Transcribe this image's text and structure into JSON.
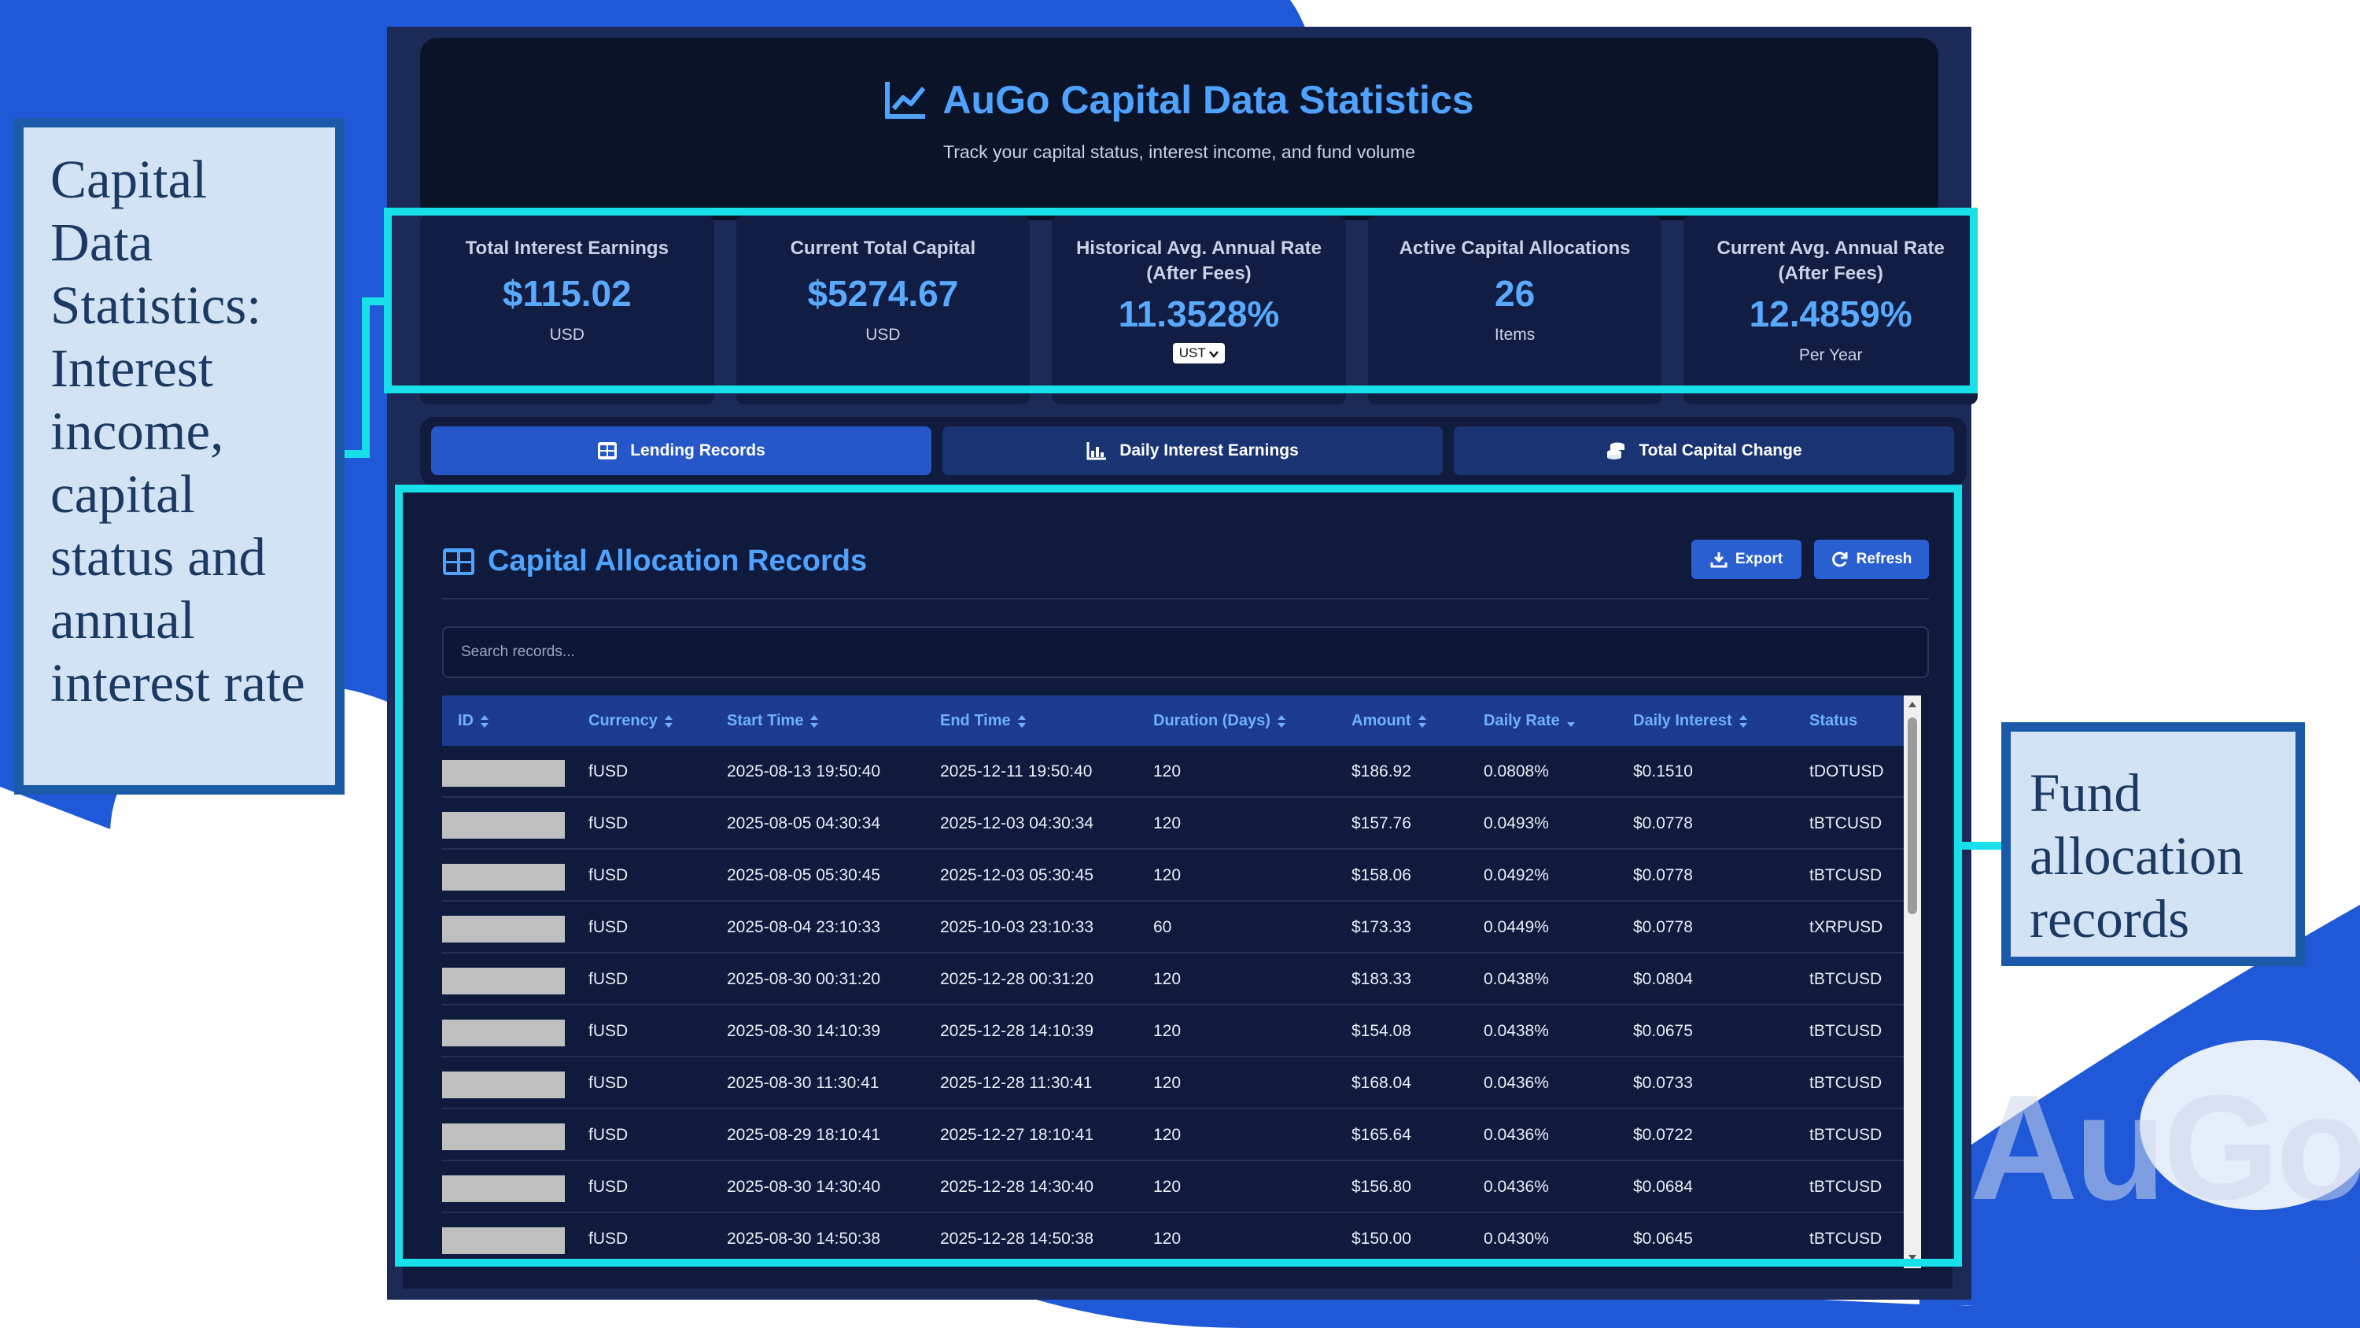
{
  "header": {
    "title": "AuGo Capital Data Statistics",
    "subtitle": "Track your capital status, interest income, and fund volume"
  },
  "stats": [
    {
      "label": "Total Interest Earnings",
      "value": "$115.02",
      "unit": "USD"
    },
    {
      "label": "Current Total Capital",
      "value": "$5274.67",
      "unit": "USD"
    },
    {
      "label": "Historical Avg. Annual Rate (After Fees)",
      "value": "11.3528%",
      "select": "UST"
    },
    {
      "label": "Active Capital Allocations",
      "value": "26",
      "unit": "Items"
    },
    {
      "label": "Current Avg. Annual Rate (After Fees)",
      "value": "12.4859%",
      "unit": "Per Year"
    }
  ],
  "tabs": [
    {
      "label": "Lending Records",
      "icon": "table-icon",
      "active": true
    },
    {
      "label": "Daily Interest Earnings",
      "icon": "chart-icon",
      "active": false
    },
    {
      "label": "Total Capital Change",
      "icon": "coins-icon",
      "active": false
    }
  ],
  "panel": {
    "title": "Capital Allocation Records",
    "export_label": "Export",
    "refresh_label": "Refresh",
    "search_placeholder": "Search records..."
  },
  "table": {
    "columns": [
      "ID",
      "Currency",
      "Start Time",
      "End Time",
      "Duration (Days)",
      "Amount",
      "Daily Rate",
      "Daily Interest",
      "Status"
    ],
    "rows": [
      [
        "",
        "fUSD",
        "2025-08-13 19:50:40",
        "2025-12-11 19:50:40",
        "120",
        "$186.92",
        "0.0808%",
        "$0.1510",
        "tDOTUSD"
      ],
      [
        "",
        "fUSD",
        "2025-08-05 04:30:34",
        "2025-12-03 04:30:34",
        "120",
        "$157.76",
        "0.0493%",
        "$0.0778",
        "tBTCUSD"
      ],
      [
        "",
        "fUSD",
        "2025-08-05 05:30:45",
        "2025-12-03 05:30:45",
        "120",
        "$158.06",
        "0.0492%",
        "$0.0778",
        "tBTCUSD"
      ],
      [
        "",
        "fUSD",
        "2025-08-04 23:10:33",
        "2025-10-03 23:10:33",
        "60",
        "$173.33",
        "0.0449%",
        "$0.0778",
        "tXRPUSD"
      ],
      [
        "",
        "fUSD",
        "2025-08-30 00:31:20",
        "2025-12-28 00:31:20",
        "120",
        "$183.33",
        "0.0438%",
        "$0.0804",
        "tBTCUSD"
      ],
      [
        "",
        "fUSD",
        "2025-08-30 14:10:39",
        "2025-12-28 14:10:39",
        "120",
        "$154.08",
        "0.0438%",
        "$0.0675",
        "tBTCUSD"
      ],
      [
        "",
        "fUSD",
        "2025-08-30 11:30:41",
        "2025-12-28 11:30:41",
        "120",
        "$168.04",
        "0.0436%",
        "$0.0733",
        "tBTCUSD"
      ],
      [
        "",
        "fUSD",
        "2025-08-29 18:10:41",
        "2025-12-27 18:10:41",
        "120",
        "$165.64",
        "0.0436%",
        "$0.0722",
        "tBTCUSD"
      ],
      [
        "",
        "fUSD",
        "2025-08-30 14:30:40",
        "2025-12-28 14:30:40",
        "120",
        "$156.80",
        "0.0436%",
        "$0.0684",
        "tBTCUSD"
      ],
      [
        "",
        "fUSD",
        "2025-08-30 14:50:38",
        "2025-12-28 14:50:38",
        "120",
        "$150.00",
        "0.0430%",
        "$0.0645",
        "tBTCUSD"
      ]
    ]
  },
  "callouts": {
    "left": "Capital Data Statistics: Interest income, capital status and annual interest rate",
    "right": "Fund allocation records"
  },
  "watermark": "AuGo",
  "colors": {
    "accent": "#4fa3ff",
    "highlight": "#18e0ea",
    "callout_border": "#1a5aa8",
    "callout_fill": "#d4e3f3",
    "app_background": "#1c2a57"
  }
}
